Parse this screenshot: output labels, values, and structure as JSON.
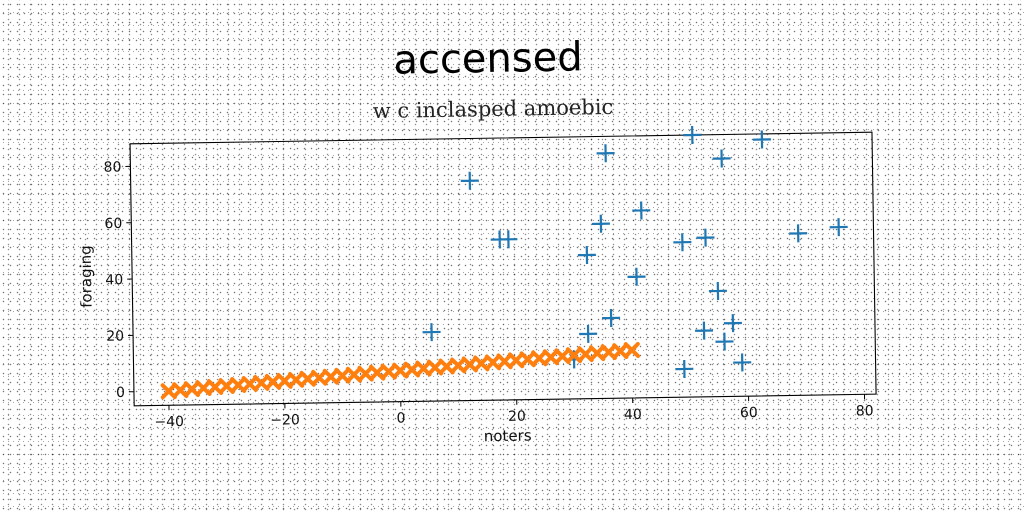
{
  "chart_data": {
    "type": "scatter",
    "title": "accensed",
    "subtitle": "w c inclasped amoebic",
    "xlabel": "noters",
    "ylabel": "foraging",
    "xlim": [
      -46,
      82
    ],
    "ylim": [
      -5,
      88
    ],
    "xticks": [
      -40,
      -20,
      0,
      20,
      40,
      60,
      80
    ],
    "yticks": [
      0,
      20,
      40,
      60,
      80
    ],
    "xtick_labels": [
      "−40",
      "−20",
      "0",
      "20",
      "40",
      "60",
      "80"
    ],
    "ytick_labels": [
      "0",
      "20",
      "40",
      "60",
      "80"
    ],
    "grid": false,
    "series": [
      {
        "marker": "plus",
        "color": "#1f77b4",
        "points": [
          [
            5.5,
            19.5
          ],
          [
            12.5,
            73
          ],
          [
            17.5,
            52
          ],
          [
            19,
            52
          ],
          [
            30,
            9
          ],
          [
            32.5,
            18
          ],
          [
            32.5,
            46
          ],
          [
            35,
            57
          ],
          [
            36.5,
            23.5
          ],
          [
            36,
            82
          ],
          [
            41,
            38
          ],
          [
            42,
            61.5
          ],
          [
            49,
            5
          ],
          [
            49,
            50
          ],
          [
            51,
            88
          ],
          [
            52.5,
            18.5
          ],
          [
            53,
            51.5
          ],
          [
            55,
            32.5
          ],
          [
            56,
            14.5
          ],
          [
            56,
            79.5
          ],
          [
            57.5,
            21
          ],
          [
            59,
            7
          ],
          [
            63,
            86
          ],
          [
            69,
            52.5
          ],
          [
            76,
            54.5
          ]
        ]
      },
      {
        "marker": "x",
        "color": "#ff7f0e",
        "x_start": -40,
        "x_end": 40,
        "count": 41,
        "y_start": 0,
        "y_end": 12
      }
    ]
  }
}
